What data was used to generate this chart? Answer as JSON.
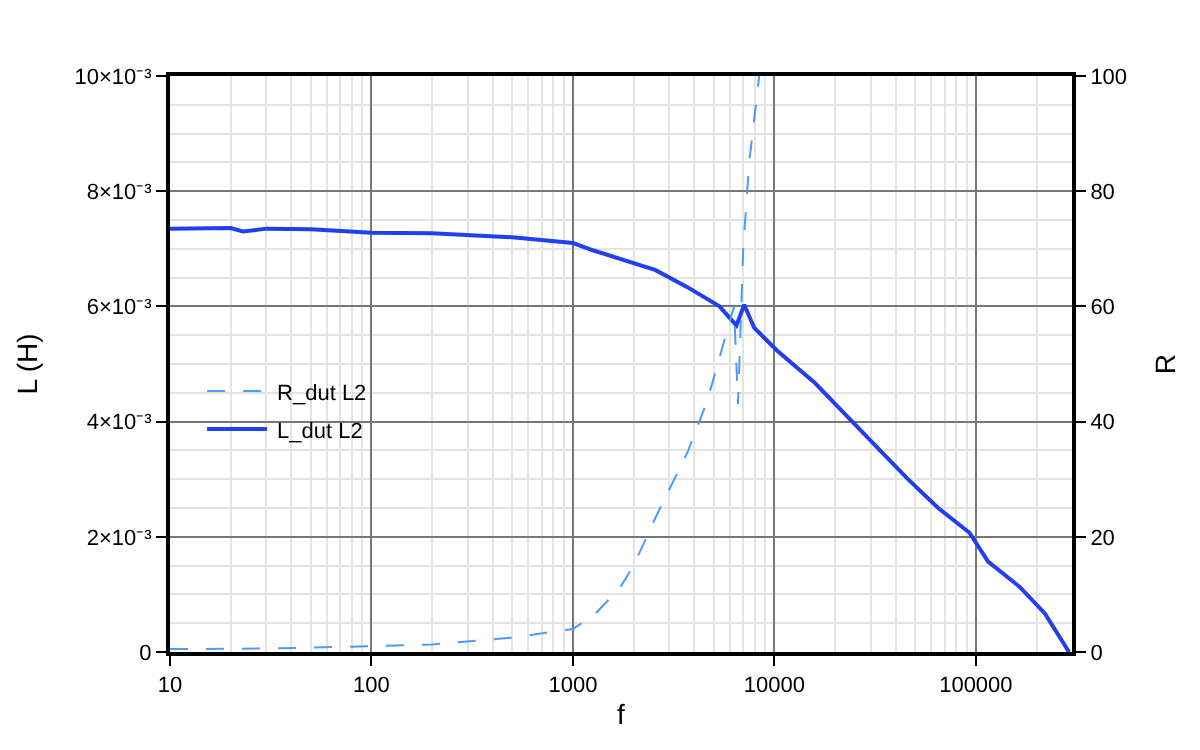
{
  "chart_data": {
    "type": "line",
    "xlabel": "f",
    "ylabel": "L (H)",
    "y2label": "R",
    "log": "x",
    "grid": true,
    "legend": "left",
    "marker": "none",
    "xlim": [
      10,
      300000
    ],
    "xticks": [
      10,
      100,
      1000,
      10000,
      100000
    ],
    "ylim": [
      0,
      0.01
    ],
    "yticks": [
      0,
      {
        "value": 0.002,
        "label": "2×10⁻³"
      },
      {
        "value": 0.004,
        "label": "4×10⁻³"
      },
      {
        "value": 0.006,
        "label": "6×10⁻³"
      },
      {
        "value": 0.008,
        "label": "8×10⁻³"
      },
      {
        "value": 0.01,
        "label": "10×10⁻³"
      }
    ],
    "y2lim": [
      0,
      100
    ],
    "y2ticks": [
      0,
      20,
      40,
      60,
      80,
      100
    ],
    "series": [
      {
        "name": "R_dut L2",
        "color": "#4d9bf5",
        "axis": "y2",
        "line_style": "dashed",
        "x": [
          10,
          30,
          100,
          200,
          500,
          1000,
          1270,
          1700,
          2000,
          2575,
          3717,
          4630,
          6020,
          6300,
          6600,
          7000,
          7500,
          8400
        ],
        "values": [
          0.5,
          0.6,
          1,
          1.3,
          2.5,
          4,
          6.4,
          11,
          15,
          23.4,
          34.8,
          43.5,
          57.5,
          60,
          43,
          70,
          85,
          100
        ]
      },
      {
        "name": "L_dut L2",
        "color": "#1f3ff0",
        "line_style": "solid",
        "x": [
          10,
          20,
          23,
          30,
          50,
          100,
          200,
          500,
          1000,
          1267,
          2575,
          3717,
          5335,
          6480,
          7080,
          7930,
          10330,
          15900,
          22400,
          32000,
          46000,
          65000,
          93000,
          115000,
          165000,
          220000,
          290000
        ],
        "values": [
          0.00735,
          0.00736,
          0.0073,
          0.00735,
          0.00734,
          0.00728,
          0.00727,
          0.0072,
          0.0071,
          0.00697,
          0.00663,
          0.00633,
          0.006,
          0.00567,
          0.00603,
          0.00563,
          0.00523,
          0.00467,
          0.00413,
          0.00357,
          0.003,
          0.0025,
          0.00207,
          0.00157,
          0.00113,
          0.00067,
          0
        ]
      }
    ]
  }
}
